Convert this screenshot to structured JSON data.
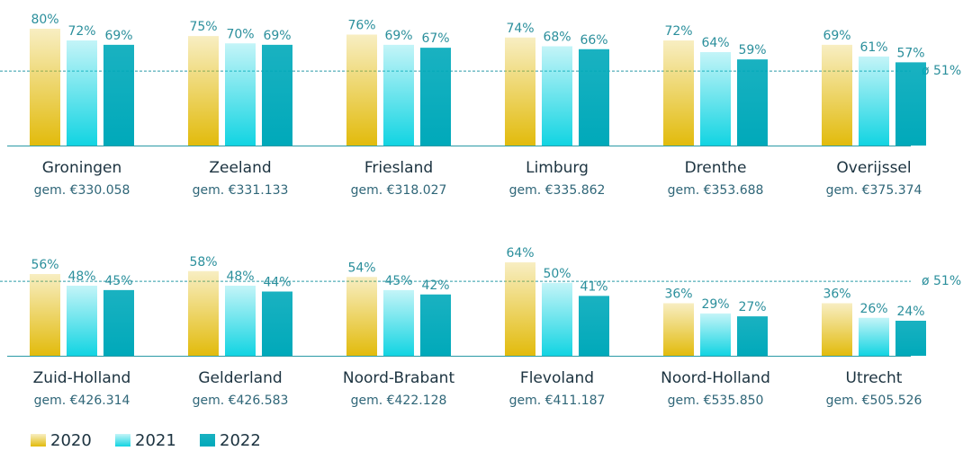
{
  "chart_data": {
    "type": "bar",
    "categories": [
      "Groningen",
      "Zeeland",
      "Friesland",
      "Limburg",
      "Drenthe",
      "Overijssel",
      "Zuid-Holland",
      "Gelderland",
      "Noord-Brabant",
      "Flevoland",
      "Noord-Holland",
      "Utrecht"
    ],
    "category_subtitles": [
      "gem. €330.058",
      "gem. €331.133",
      "gem. €318.027",
      "gem. €335.862",
      "gem. €353.688",
      "gem. €375.374",
      "gem. €426.314",
      "gem. €426.583",
      "gem. €422.128",
      "gem. €411.187",
      "gem. €535.850",
      "gem. €505.526"
    ],
    "series": [
      {
        "name": "2020",
        "color": "#e2bb0c",
        "values": [
          80,
          75,
          76,
          74,
          72,
          69,
          56,
          58,
          54,
          64,
          36,
          36
        ],
        "value_labels": [
          "80%",
          "75%",
          "76%",
          "74%",
          "72%",
          "69%",
          "56%",
          "58%",
          "54%",
          "64%",
          "36%",
          "36%"
        ]
      },
      {
        "name": "2021",
        "color": "#12d4e2",
        "values": [
          72,
          70,
          69,
          68,
          64,
          61,
          48,
          48,
          45,
          50,
          29,
          26
        ],
        "value_labels": [
          "72%",
          "70%",
          "69%",
          "68%",
          "64%",
          "61%",
          "48%",
          "48%",
          "45%",
          "50%",
          "29%",
          "26%"
        ]
      },
      {
        "name": "2022",
        "color": "#00a9ba",
        "values": [
          69,
          69,
          67,
          66,
          59,
          57,
          45,
          44,
          42,
          41,
          27,
          24
        ],
        "value_labels": [
          "69%",
          "69%",
          "67%",
          "66%",
          "59%",
          "57%",
          "45%",
          "44%",
          "42%",
          "41%",
          "27%",
          "24%"
        ]
      }
    ],
    "ylim": [
      0,
      80
    ],
    "reference_line": {
      "value": 51,
      "label": "ø 51%"
    }
  }
}
